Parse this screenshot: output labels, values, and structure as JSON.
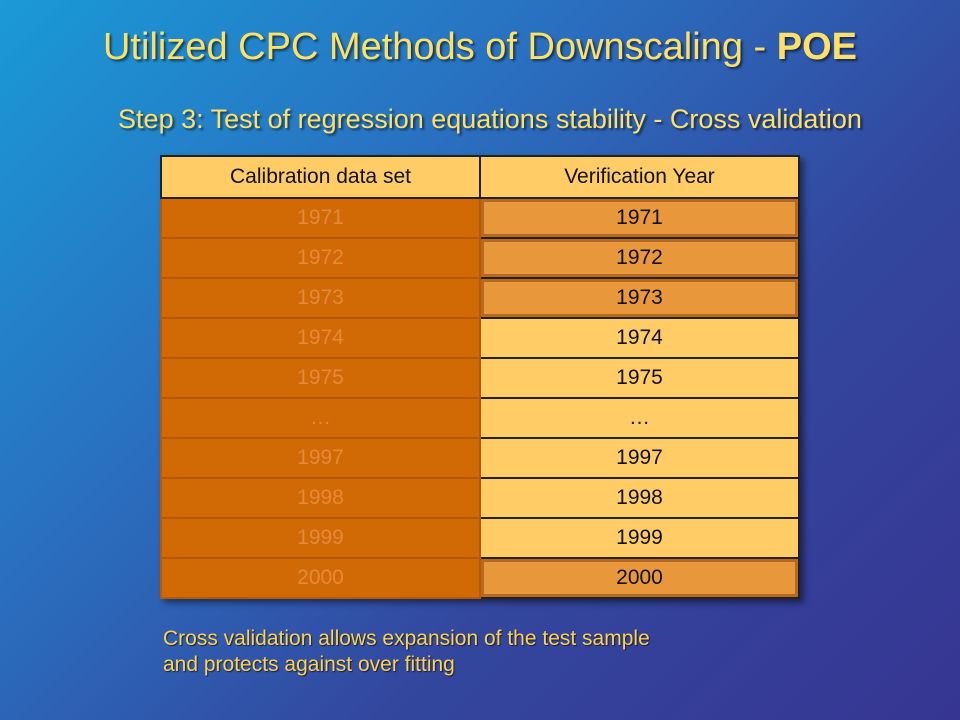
{
  "slide": {
    "title_main": "Utilized CPC Methods of Downscaling - ",
    "title_emph": "POE",
    "subtitle": "Step 3: Test of regression equations stability - Cross validation",
    "table": {
      "headers": [
        "Calibration data set",
        "Verification Year"
      ],
      "rows": [
        {
          "calibration": "1971",
          "verification": "1971"
        },
        {
          "calibration": "1972",
          "verification": "1972"
        },
        {
          "calibration": "1973",
          "verification": "1973"
        },
        {
          "calibration": "1974",
          "verification": "1974"
        },
        {
          "calibration": "1975",
          "verification": "1975"
        },
        {
          "calibration": "…",
          "verification": "…"
        },
        {
          "calibration": "1997",
          "verification": "1997"
        },
        {
          "calibration": "1998",
          "verification": "1998"
        },
        {
          "calibration": "1999",
          "verification": "1999"
        },
        {
          "calibration": "2000",
          "verification": "2000"
        }
      ]
    },
    "note_line1": "Cross validation allows expansion of the test sample",
    "note_line2": "and protects against over fitting",
    "colors": {
      "title": "#ffe066",
      "calibration_fill": "#d16a04",
      "verification_fill": "#ffcc66",
      "highlight_fill": "#e8983a"
    }
  }
}
